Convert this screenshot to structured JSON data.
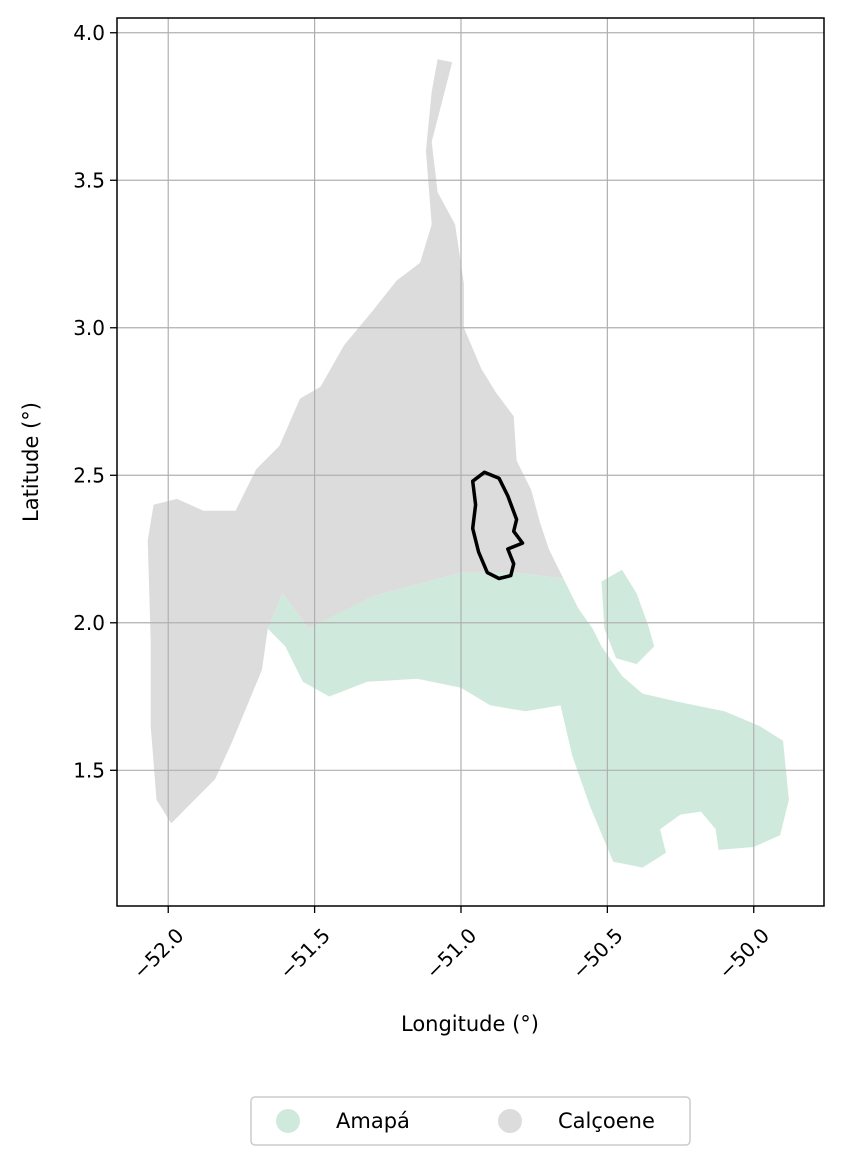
{
  "axes": {
    "xlabel": "Longitude (°)",
    "ylabel": "Latitude (°)",
    "xlim": [
      -52.175,
      -49.76
    ],
    "ylim": [
      1.04,
      4.05
    ],
    "x_ticks": [
      {
        "value": -52.0,
        "label": "−52.0"
      },
      {
        "value": -51.5,
        "label": "−51.5"
      },
      {
        "value": -51.0,
        "label": "−51.0"
      },
      {
        "value": -50.5,
        "label": "−50.5"
      },
      {
        "value": -50.0,
        "label": "−50.0"
      }
    ],
    "y_ticks": [
      {
        "value": 1.5,
        "label": "1.5"
      },
      {
        "value": 2.0,
        "label": "2.0"
      },
      {
        "value": 2.5,
        "label": "2.5"
      },
      {
        "value": 3.0,
        "label": "3.0"
      },
      {
        "value": 3.5,
        "label": "3.5"
      },
      {
        "value": 4.0,
        "label": "4.0"
      }
    ],
    "grid": true,
    "x_tick_rotation_deg": 45
  },
  "legend": {
    "placement": "bottom-center",
    "entries": [
      {
        "label": "Amapá",
        "color": "#cfeadc"
      },
      {
        "label": "Calçoene",
        "color": "#dcdcdc"
      }
    ]
  },
  "regions": [
    {
      "name": "Calçoene",
      "color": "#dcdcdc",
      "outline": [
        [
          -51.08,
          3.91
        ],
        [
          -51.03,
          3.9
        ],
        [
          -51.1,
          3.63
        ],
        [
          -51.08,
          3.46
        ],
        [
          -51.02,
          3.35
        ],
        [
          -50.99,
          3.15
        ],
        [
          -50.99,
          3.0
        ],
        [
          -50.93,
          2.86
        ],
        [
          -50.88,
          2.78
        ],
        [
          -50.82,
          2.7
        ],
        [
          -50.81,
          2.55
        ],
        [
          -50.76,
          2.45
        ],
        [
          -50.73,
          2.34
        ],
        [
          -50.7,
          2.25
        ],
        [
          -50.65,
          2.15
        ],
        [
          -50.82,
          2.17
        ],
        [
          -51.0,
          2.17
        ],
        [
          -51.3,
          2.09
        ],
        [
          -51.52,
          1.98
        ],
        [
          -51.61,
          2.1
        ],
        [
          -51.66,
          1.98
        ],
        [
          -51.68,
          1.84
        ],
        [
          -51.78,
          1.6
        ],
        [
          -51.84,
          1.47
        ],
        [
          -51.99,
          1.32
        ],
        [
          -52.04,
          1.4
        ],
        [
          -52.06,
          1.65
        ],
        [
          -52.06,
          1.94
        ],
        [
          -52.07,
          2.28
        ],
        [
          -52.05,
          2.4
        ],
        [
          -51.97,
          2.42
        ],
        [
          -51.88,
          2.38
        ],
        [
          -51.77,
          2.38
        ],
        [
          -51.7,
          2.52
        ],
        [
          -51.62,
          2.6
        ],
        [
          -51.55,
          2.76
        ],
        [
          -51.48,
          2.8
        ],
        [
          -51.4,
          2.94
        ],
        [
          -51.3,
          3.06
        ],
        [
          -51.22,
          3.16
        ],
        [
          -51.14,
          3.22
        ],
        [
          -51.1,
          3.35
        ],
        [
          -51.12,
          3.6
        ],
        [
          -51.1,
          3.8
        ]
      ]
    },
    {
      "name": "Amapá",
      "color": "#cfeadc",
      "outline": [
        [
          -51.66,
          1.98
        ],
        [
          -51.61,
          2.1
        ],
        [
          -51.52,
          1.98
        ],
        [
          -51.3,
          2.09
        ],
        [
          -51.0,
          2.17
        ],
        [
          -50.82,
          2.17
        ],
        [
          -50.65,
          2.15
        ],
        [
          -50.6,
          2.05
        ],
        [
          -50.55,
          1.98
        ],
        [
          -50.52,
          1.92
        ],
        [
          -50.45,
          1.82
        ],
        [
          -50.38,
          1.76
        ],
        [
          -50.25,
          1.73
        ],
        [
          -50.1,
          1.7
        ],
        [
          -49.98,
          1.65
        ],
        [
          -49.9,
          1.6
        ],
        [
          -49.88,
          1.4
        ],
        [
          -49.91,
          1.28
        ],
        [
          -50.0,
          1.24
        ],
        [
          -50.12,
          1.23
        ],
        [
          -50.13,
          1.3
        ],
        [
          -50.18,
          1.36
        ],
        [
          -50.25,
          1.35
        ],
        [
          -50.32,
          1.3
        ],
        [
          -50.3,
          1.22
        ],
        [
          -50.38,
          1.17
        ],
        [
          -50.48,
          1.19
        ],
        [
          -50.56,
          1.38
        ],
        [
          -50.62,
          1.55
        ],
        [
          -50.66,
          1.72
        ],
        [
          -50.78,
          1.7
        ],
        [
          -50.9,
          1.72
        ],
        [
          -51.0,
          1.78
        ],
        [
          -51.15,
          1.81
        ],
        [
          -51.32,
          1.8
        ],
        [
          -51.45,
          1.75
        ],
        [
          -51.54,
          1.8
        ],
        [
          -51.6,
          1.92
        ]
      ]
    },
    {
      "name": "Amapá island",
      "color": "#cfeadc",
      "outline": [
        [
          -50.52,
          2.14
        ],
        [
          -50.45,
          2.18
        ],
        [
          -50.4,
          2.1
        ],
        [
          -50.36,
          1.99
        ],
        [
          -50.34,
          1.92
        ],
        [
          -50.4,
          1.86
        ],
        [
          -50.47,
          1.88
        ],
        [
          -50.51,
          1.98
        ]
      ]
    }
  ],
  "highlight": {
    "outline": [
      [
        -50.96,
        2.48
      ],
      [
        -50.92,
        2.51
      ],
      [
        -50.87,
        2.49
      ],
      [
        -50.84,
        2.43
      ],
      [
        -50.81,
        2.35
      ],
      [
        -50.82,
        2.31
      ],
      [
        -50.79,
        2.27
      ],
      [
        -50.84,
        2.25
      ],
      [
        -50.82,
        2.2
      ],
      [
        -50.83,
        2.16
      ],
      [
        -50.87,
        2.15
      ],
      [
        -50.91,
        2.17
      ],
      [
        -50.94,
        2.24
      ],
      [
        -50.96,
        2.32
      ],
      [
        -50.95,
        2.4
      ]
    ]
  }
}
